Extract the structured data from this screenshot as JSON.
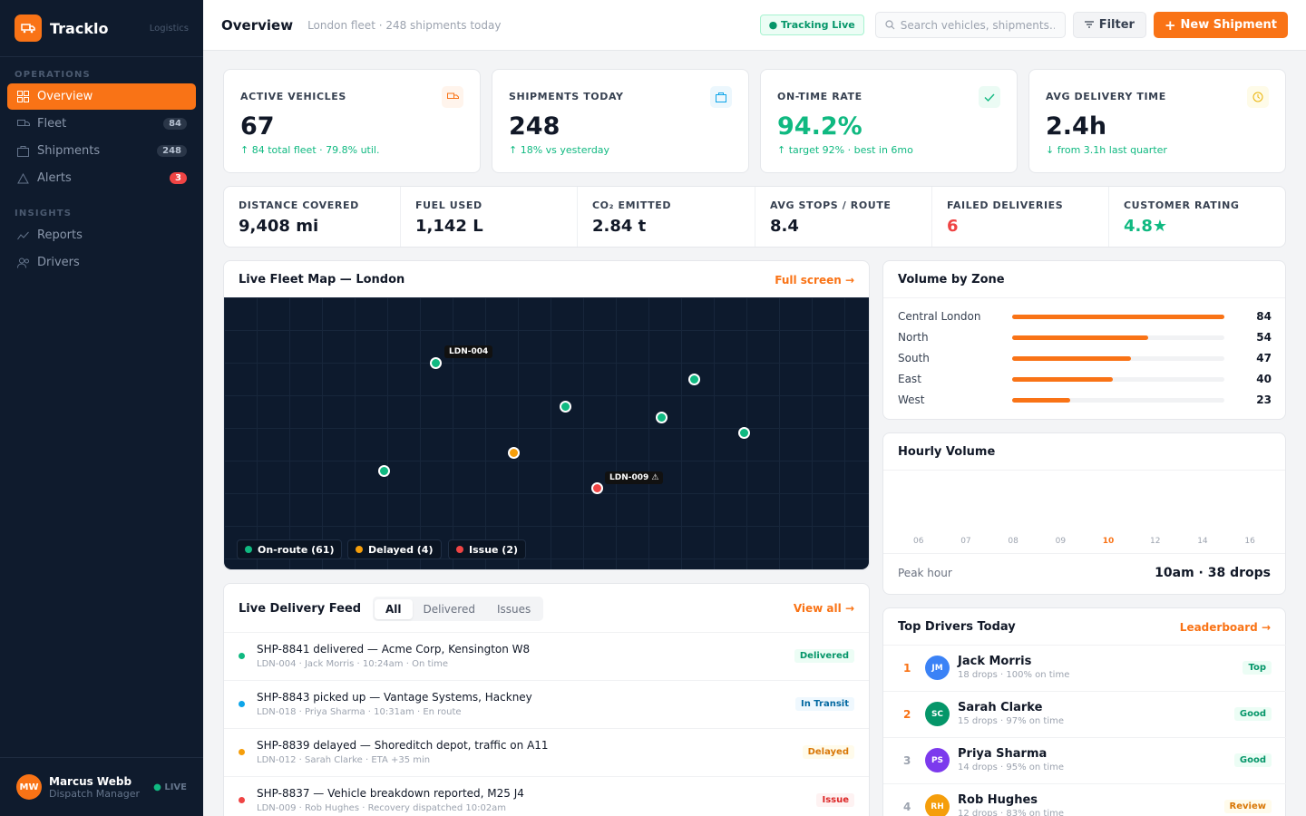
{
  "brand": {
    "name": "Tracklo",
    "tag": "Logistics"
  },
  "sidebar": {
    "sections": [
      "OPERATIONS",
      "INSIGHTS"
    ],
    "items": [
      {
        "label": "Overview",
        "badge": ""
      },
      {
        "label": "Fleet",
        "badge": "84"
      },
      {
        "label": "Shipments",
        "badge": "248"
      },
      {
        "label": "Alerts",
        "badge": "3"
      },
      {
        "label": "Reports",
        "badge": ""
      },
      {
        "label": "Drivers",
        "badge": ""
      }
    ],
    "user": {
      "initials": "MW",
      "name": "Marcus Webb",
      "role": "Dispatch Manager",
      "status": "LIVE"
    }
  },
  "header": {
    "title": "Overview",
    "subtitle": "London fleet · 248 shipments today",
    "tracking": "Tracking Live",
    "search_placeholder": "Search vehicles, shipments…",
    "filter_label": "Filter",
    "new_label": "New Shipment"
  },
  "kpis": [
    {
      "label": "ACTIVE VEHICLES",
      "value": "67",
      "sub": "↑ 84 total fleet · 79.8% util.",
      "icon": "truck-icon",
      "accent": "#f97316"
    },
    {
      "label": "SHIPMENTS TODAY",
      "value": "248",
      "sub": "↑ 18% vs yesterday",
      "icon": "package-icon",
      "accent": "#0ea5e9"
    },
    {
      "label": "ON-TIME RATE",
      "value": "94.2%",
      "sub": "↑ target 92% · best in 6mo",
      "icon": "check-icon",
      "accent": "#10b981"
    },
    {
      "label": "AVG DELIVERY TIME",
      "value": "2.4h",
      "sub": "↓ from 3.1h last quarter",
      "icon": "clock-icon",
      "accent": "#eab308"
    }
  ],
  "stats": [
    {
      "label": "DISTANCE COVERED",
      "value": "9,408 mi"
    },
    {
      "label": "FUEL USED",
      "value": "1,142 L"
    },
    {
      "label": "CO₂ EMITTED",
      "value": "2.84 t"
    },
    {
      "label": "AVG STOPS / ROUTE",
      "value": "8.4"
    },
    {
      "label": "FAILED DELIVERIES",
      "value": "6"
    },
    {
      "label": "CUSTOMER RATING",
      "value": "4.8★"
    }
  ],
  "map": {
    "title": "Live Fleet Map — London",
    "link": "Full screen →",
    "labels": [
      "LDN-004",
      "LDN-009 ⚠"
    ],
    "legend": [
      "On-route (61)",
      "Delayed (4)",
      "Issue (2)"
    ]
  },
  "zones": {
    "title": "Volume by Zone",
    "max": 84,
    "items": [
      {
        "name": "Central London",
        "value": 84
      },
      {
        "name": "North",
        "value": 54
      },
      {
        "name": "South",
        "value": 47
      },
      {
        "name": "East",
        "value": 40
      },
      {
        "name": "West",
        "value": 23
      }
    ]
  },
  "hourly": {
    "title": "Hourly Volume",
    "hours": [
      "06",
      "07",
      "08",
      "09",
      "10",
      "12",
      "14",
      "16"
    ],
    "active_hour": "10",
    "peak_label": "Peak hour",
    "peak_value": "10am · 38 drops"
  },
  "feed": {
    "title": "Live Delivery Feed",
    "tabs": [
      "All",
      "Delivered",
      "Issues"
    ],
    "link": "View all →",
    "rows": [
      {
        "title": "SHP-8841 delivered — Acme Corp, Kensington W8",
        "meta": "LDN-004 · Jack Morris · 10:24am · On time",
        "status": "Delivered"
      },
      {
        "title": "SHP-8843 picked up — Vantage Systems, Hackney",
        "meta": "LDN-018 · Priya Sharma · 10:31am · En route",
        "status": "In Transit"
      },
      {
        "title": "SHP-8839 delayed — Shoreditch depot, traffic on A11",
        "meta": "LDN-012 · Sarah Clarke · ETA +35 min",
        "status": "Delayed"
      },
      {
        "title": "SHP-8837 — Vehicle breakdown reported, M25 J4",
        "meta": "LDN-009 · Rob Hughes · Recovery dispatched 10:02am",
        "status": "Issue"
      }
    ]
  },
  "drivers": {
    "title": "Top Drivers Today",
    "link": "Leaderboard →",
    "rows": [
      {
        "rank": "1",
        "initials": "JM",
        "name": "Jack Morris",
        "meta": "18 drops · 100% on time",
        "badge": "Top",
        "color": "#3b82f6"
      },
      {
        "rank": "2",
        "initials": "SC",
        "name": "Sarah Clarke",
        "meta": "15 drops · 97% on time",
        "badge": "Good",
        "color": "#059669"
      },
      {
        "rank": "3",
        "initials": "PS",
        "name": "Priya Sharma",
        "meta": "14 drops · 95% on time",
        "badge": "Good",
        "color": "#7c3aed"
      },
      {
        "rank": "4",
        "initials": "RH",
        "name": "Rob Hughes",
        "meta": "12 drops · 83% on time",
        "badge": "Review",
        "color": "#f59e0b"
      }
    ]
  }
}
